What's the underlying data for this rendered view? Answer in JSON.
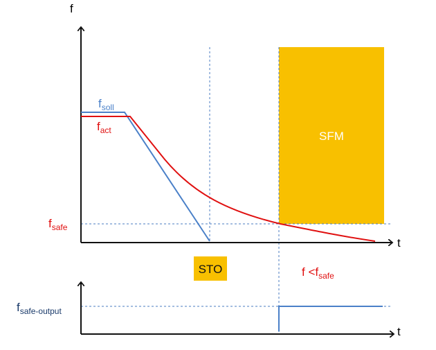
{
  "axes": {
    "top": {
      "y_label": "f",
      "x_label": "t"
    },
    "bottom": {
      "x_label": "t"
    }
  },
  "labels": {
    "f_soll": {
      "main": "f",
      "sub": "soll"
    },
    "f_act": {
      "main": "f",
      "sub": "act"
    },
    "f_safe": {
      "main": "f",
      "sub": "safe"
    },
    "f_safe_output": {
      "main": "f",
      "sub": "safe-output"
    },
    "condition": {
      "main": "f <f",
      "sub": "safe"
    }
  },
  "boxes": {
    "sfm": "SFM",
    "sto": "STO"
  }
}
